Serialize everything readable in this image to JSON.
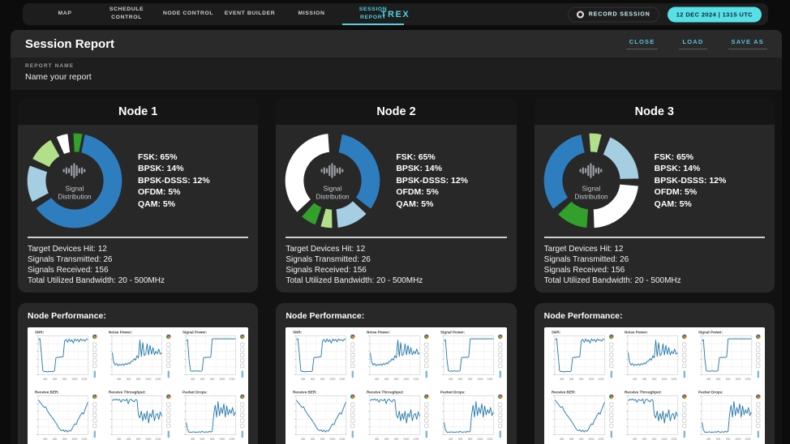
{
  "topbar": {
    "tabs": [
      {
        "label": "MAP",
        "active": false
      },
      {
        "label": "SCHEDULE CONTROL",
        "active": false
      },
      {
        "label": "NODE CONTROL",
        "active": false
      },
      {
        "label": "EVENT BUILDER",
        "active": false
      },
      {
        "label": "MISSION",
        "active": false
      },
      {
        "label": "SESSION REPORT",
        "active": true
      }
    ],
    "brand": "TREX",
    "record_label": "RECORD SESSION",
    "timestamp": "12 DEC 2024 | 1315 UTC"
  },
  "report": {
    "title": "Session Report",
    "actions": [
      {
        "label": "CLOSE"
      },
      {
        "label": "LOAD"
      },
      {
        "label": "SAVE AS"
      }
    ],
    "name_label": "REPORT NAME",
    "name_placeholder": "Name your report",
    "name_value": ""
  },
  "performance_title": "Node Performance:",
  "nodes": [
    {
      "title": "Node 1",
      "center_label": [
        "Signal",
        "Distribution"
      ],
      "legend": [
        "FSK: 65%",
        "BPSK: 14%",
        "BPSK-DSSS: 12%",
        "OFDM: 5%",
        "QAM: 5%"
      ],
      "stats": [
        "Target Devices Hit: 12",
        "Signals Transmitted: 26",
        "Signals Received: 156",
        "Total Utilized Bandwidth: 20 - 500MHz"
      ]
    },
    {
      "title": "Node 2",
      "center_label": [
        "Signal",
        "Distribution"
      ],
      "legend": [
        "FSK: 65%",
        "BPSK: 14%",
        "BPSK-DSSS: 12%",
        "OFDM: 5%",
        "QAM: 5%"
      ],
      "stats": [
        "Target Devices Hit: 12",
        "Signals Transmitted: 26",
        "Signals Received: 156",
        "Total Utilized Bandwidth: 20 - 500MHz"
      ]
    },
    {
      "title": "Node 3",
      "center_label": [
        "Signal",
        "Distribution"
      ],
      "legend": [
        "FSK: 65%",
        "BPSK: 14%",
        "BPSK-DSSS: 12%",
        "OFDM: 5%",
        "QAM: 5%"
      ],
      "stats": [
        "Target Devices Hit: 12",
        "Signals Transmitted: 26",
        "Signals Received: 156",
        "Total Utilized Bandwidth: 20 - 500MHz"
      ]
    }
  ],
  "colors": {
    "accent": "#4DD0E1",
    "pill_bg": "#57E0E6",
    "pill_text": "#082B31",
    "chart_line": "#1F77B4",
    "donut_palette": {
      "blue": "#2E7EBF",
      "light_blue": "#A6CEE3",
      "light_green": "#B2DF8A",
      "green": "#33A02C",
      "white": "#FFFFFF"
    }
  },
  "chart_data": {
    "donuts": [
      {
        "node": "Node 1",
        "type": "pie",
        "center_label": "Signal Distribution",
        "labels": [
          "FSK",
          "BPSK",
          "BPSK-DSSS",
          "OFDM",
          "QAM"
        ],
        "values": [
          65,
          14,
          12,
          5,
          5
        ],
        "segments": [
          {
            "color": "blue",
            "start": 8,
            "end": 236
          },
          {
            "color": "light_blue",
            "start": 242,
            "end": 290
          },
          {
            "color": "light_green",
            "start": 296,
            "end": 331
          },
          {
            "color": "white",
            "start": 336,
            "end": 353
          },
          {
            "color": "green",
            "start": 357,
            "end": 371
          }
        ]
      },
      {
        "node": "Node 2",
        "type": "pie",
        "center_label": "Signal Distribution",
        "labels": [
          "FSK",
          "BPSK",
          "BPSK-DSSS",
          "OFDM",
          "QAM"
        ],
        "values": [
          65,
          14,
          12,
          5,
          5
        ],
        "segments": [
          {
            "color": "blue",
            "start": 10,
            "end": 128
          },
          {
            "color": "light_blue",
            "start": 133,
            "end": 175
          },
          {
            "color": "light_green",
            "start": 179,
            "end": 196
          },
          {
            "color": "green",
            "start": 200,
            "end": 222
          },
          {
            "color": "white",
            "start": 227,
            "end": 356
          }
        ]
      },
      {
        "node": "Node 3",
        "type": "pie",
        "center_label": "Signal Distribution",
        "labels": [
          "FSK",
          "BPSK",
          "BPSK-DSSS",
          "OFDM",
          "QAM"
        ],
        "values": [
          65,
          14,
          12,
          5,
          5
        ],
        "segments": [
          {
            "color": "light_green",
            "start": 356,
            "end": 374
          },
          {
            "color": "light_blue",
            "start": 22,
            "end": 89
          },
          {
            "color": "white",
            "start": 95,
            "end": 178
          },
          {
            "color": "green",
            "start": 184,
            "end": 226
          },
          {
            "color": "blue",
            "start": 232,
            "end": 349
          }
        ]
      }
    ],
    "performance": {
      "type": "line",
      "x_ticks": [
        "400",
        "600",
        "800",
        "1000",
        "1200"
      ],
      "charts": [
        {
          "title": "SNR:",
          "values_norm": [
            0.93,
            0.96,
            0.55,
            0.1,
            0.07,
            0.08,
            0.06,
            0.08,
            0.07,
            0.08,
            0.07,
            0.09,
            0.44,
            0.46,
            0.45,
            0.47,
            0.46,
            0.48,
            0.9,
            0.94,
            0.86,
            0.95,
            0.88,
            0.93,
            0.84,
            0.95,
            0.9,
            0.94,
            0.87,
            0.95,
            0.91,
            0.93,
            0.89,
            0.95,
            0.93
          ]
        },
        {
          "title": "Noise Power:",
          "values_norm": [
            0.58,
            0.32,
            0.25,
            0.29,
            0.23,
            0.27,
            0.24,
            0.28,
            0.24,
            0.29,
            0.26,
            0.31,
            0.28,
            0.35,
            0.35,
            0.42,
            0.38,
            0.5,
            0.44,
            0.92,
            0.48,
            0.85,
            0.5,
            0.55,
            0.82,
            0.52,
            0.78,
            0.54,
            0.72,
            0.52,
            0.62,
            0.55,
            0.68,
            0.54,
            0.58
          ]
        },
        {
          "title": "Signal Power:",
          "values_norm": [
            0.9,
            0.93,
            0.4,
            0.1,
            0.08,
            0.09,
            0.08,
            0.1,
            0.08,
            0.09,
            0.08,
            0.1,
            0.44,
            0.46,
            0.45,
            0.46,
            0.45,
            0.47,
            0.95,
            0.96,
            0.95,
            0.96,
            0.95,
            0.96,
            0.95,
            0.96,
            0.95,
            0.96,
            0.95,
            0.96,
            0.95,
            0.96,
            0.95,
            0.96,
            0.95
          ]
        },
        {
          "title": "Receive BER:",
          "values_norm": [
            0.92,
            0.86,
            0.82,
            0.76,
            0.72,
            0.74,
            0.64,
            0.58,
            0.52,
            0.47,
            0.42,
            0.36,
            0.3,
            0.24,
            0.17,
            0.12,
            0.09,
            0.12,
            0.07,
            0.11,
            0.06,
            0.1,
            0.08,
            0.14,
            0.22,
            0.28,
            0.26,
            0.38,
            0.44,
            0.52,
            0.58,
            0.54,
            0.66,
            0.76,
            0.86
          ]
        },
        {
          "title": "Receive Throughput:",
          "values_norm": [
            0.9,
            0.94,
            0.92,
            0.95,
            0.91,
            0.94,
            0.86,
            0.93,
            0.92,
            0.9,
            0.95,
            0.82,
            0.93,
            0.94,
            0.9,
            0.87,
            0.93,
            0.92,
            0.52,
            0.44,
            0.62,
            0.36,
            0.56,
            0.4,
            0.62,
            0.3,
            0.56,
            0.46,
            0.66,
            0.36,
            0.52,
            0.56,
            0.4,
            0.6,
            0.48
          ]
        },
        {
          "title": "Packet Drops:",
          "values_norm": [
            0.32,
            0.12,
            0.05,
            0.06,
            0.05,
            0.07,
            0.05,
            0.06,
            0.05,
            0.07,
            0.05,
            0.08,
            0.06,
            0.05,
            0.07,
            0.05,
            0.08,
            0.06,
            0.07,
            0.52,
            0.78,
            0.46,
            0.88,
            0.5,
            0.72,
            0.56,
            0.82,
            0.46,
            0.76,
            0.52,
            0.66,
            0.56,
            0.72,
            0.5,
            0.6
          ]
        }
      ]
    }
  }
}
